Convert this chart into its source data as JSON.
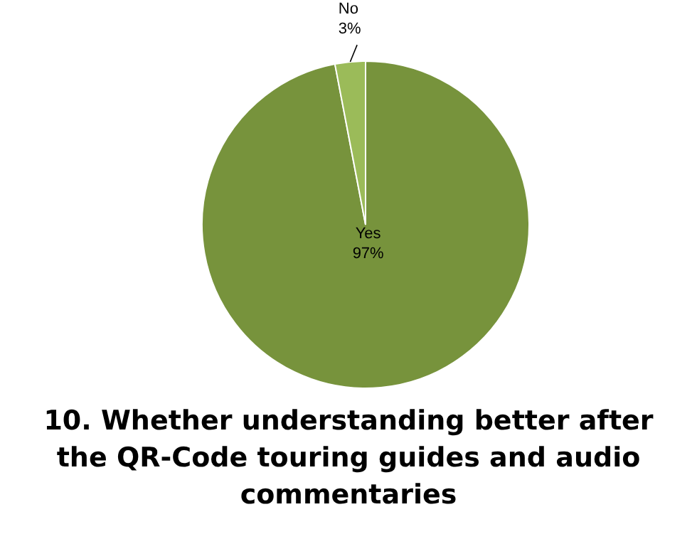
{
  "chart_data": {
    "type": "pie",
    "title": "10. Whether understanding better after the QR-Code touring guides and audio commentaries",
    "categories": [
      "Yes",
      "No"
    ],
    "values": [
      97,
      3
    ],
    "colors": [
      "#77933c",
      "#9bbb59"
    ],
    "value_labels": [
      "97%",
      "3%"
    ]
  }
}
